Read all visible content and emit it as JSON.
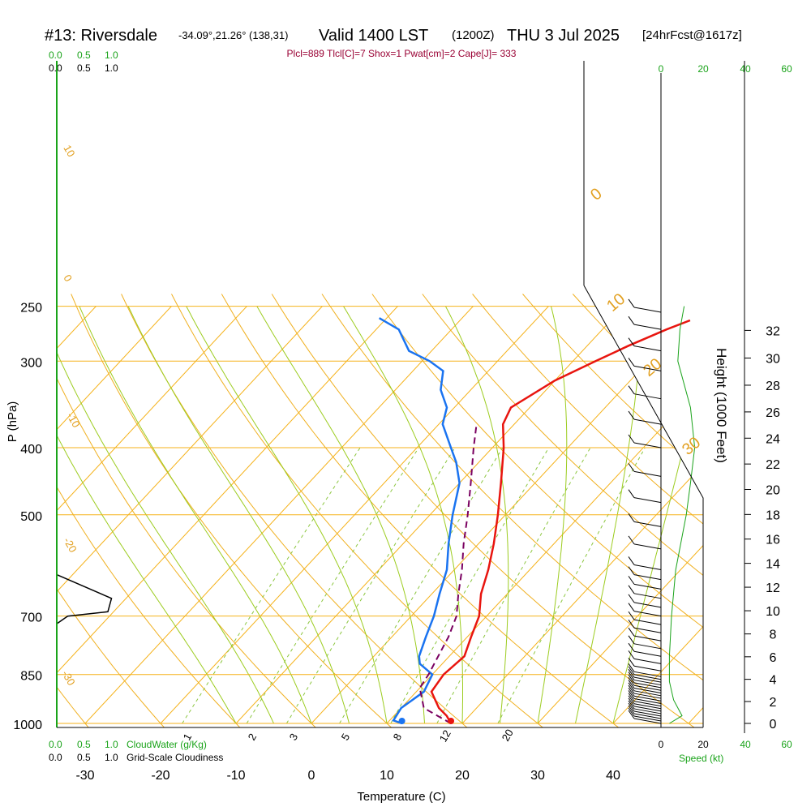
{
  "header": {
    "station": "#13: Riversdale",
    "coords": "-34.09°,21.26° (138,31)",
    "valid": "Valid 1400 LST",
    "utc": "(1200Z)",
    "date": "THU 3 Jul 2025",
    "forecast": "[24hrFcst@1617z]"
  },
  "indices": "Plcl=889 Tlcl[C]=7 Shox=1 Pwat[cm]=2 Cape[J]= 333",
  "left_scales": {
    "top_cloudwater": [
      "0.0",
      "0.5",
      "1.0"
    ],
    "top_cloudiness": [
      "0.0",
      "0.5",
      "1.0"
    ],
    "bottom_cloudwater": [
      "0.0",
      "0.5",
      "1.0"
    ],
    "bottom_cloudwater_label": "CloudWater (g/Kg)",
    "bottom_cloudiness": [
      "0.0",
      "0.5",
      "1.0"
    ],
    "bottom_cloudiness_label": "Grid-Scale Cloudiness"
  },
  "speed_scale": {
    "top_labels": [
      "0",
      "20",
      "40",
      "60"
    ],
    "bottom_labels": [
      "0",
      "20",
      "40",
      "60"
    ],
    "label": "Speed (kt)"
  },
  "chart_data": {
    "type": "line",
    "subtype": "skew-T log-P sounding",
    "xlabel": "Temperature (C)",
    "ylabel": "P (hPa)",
    "y2label": "Height (1000 Feet)",
    "x_ticks": [
      -30,
      -20,
      -10,
      0,
      10,
      20,
      30,
      40
    ],
    "pressure_ticks": [
      250,
      300,
      400,
      500,
      700,
      850,
      1000
    ],
    "height_ticks": [
      0,
      2,
      4,
      6,
      8,
      10,
      12,
      14,
      16,
      18,
      20,
      22,
      24,
      26,
      28,
      30,
      32
    ],
    "dry_adiabat_labels": [
      "10",
      "0",
      "-10",
      "-20",
      "-30"
    ],
    "moist_adiabat_labels": [
      "0",
      "10",
      "20",
      "30"
    ],
    "mixing_ratio_labels": [
      "1",
      "2",
      "3",
      "5",
      "8",
      "12",
      "20"
    ],
    "series": [
      {
        "name": "temperature",
        "color": "#e8150f",
        "points": [
          [
            18.5,
            1000
          ],
          [
            17,
            975
          ],
          [
            15,
            950
          ],
          [
            12,
            900
          ],
          [
            11.5,
            850
          ],
          [
            12,
            800
          ],
          [
            10.5,
            750
          ],
          [
            9,
            700
          ],
          [
            6.5,
            650
          ],
          [
            4.5,
            600
          ],
          [
            2,
            550
          ],
          [
            -1,
            500
          ],
          [
            -4.5,
            450
          ],
          [
            -8.5,
            400
          ],
          [
            -11.5,
            370
          ],
          [
            -12.5,
            350
          ],
          [
            -10,
            320
          ],
          [
            -7,
            300
          ],
          [
            -4.5,
            285
          ],
          [
            -1.5,
            270
          ],
          [
            0.5,
            262
          ]
        ]
      },
      {
        "name": "dewpoint",
        "color": "#1a73f0",
        "points": [
          [
            12,
            1000
          ],
          [
            10.5,
            990
          ],
          [
            10,
            950
          ],
          [
            11,
            900
          ],
          [
            10,
            850
          ],
          [
            7,
            820
          ],
          [
            6,
            800
          ],
          [
            4.5,
            750
          ],
          [
            3,
            700
          ],
          [
            1,
            650
          ],
          [
            -1,
            600
          ],
          [
            -4,
            550
          ],
          [
            -7,
            500
          ],
          [
            -10,
            450
          ],
          [
            -13,
            420
          ],
          [
            -15.5,
            400
          ],
          [
            -19.5,
            370
          ],
          [
            -21,
            350
          ],
          [
            -24,
            330
          ],
          [
            -26,
            310
          ],
          [
            -29,
            300
          ],
          [
            -33,
            290
          ],
          [
            -37,
            270
          ],
          [
            -41,
            260
          ]
        ]
      },
      {
        "name": "parcel",
        "color": "#7a0060",
        "dashed": true,
        "points": [
          [
            18.5,
            1000
          ],
          [
            13,
            950
          ],
          [
            10,
            889
          ],
          [
            9.5,
            850
          ],
          [
            7.5,
            750
          ],
          [
            6,
            700
          ],
          [
            3.5,
            650
          ],
          [
            1,
            600
          ],
          [
            -2,
            550
          ],
          [
            -5,
            500
          ],
          [
            -8.5,
            450
          ],
          [
            -12.5,
            400
          ],
          [
            -15,
            370
          ]
        ]
      }
    ],
    "cloudiness_profile": {
      "name": "grid-scale cloudiness",
      "color": "#000000",
      "points": [
        [
          0,
          610
        ],
        [
          0.75,
          660
        ],
        [
          0.7,
          690
        ],
        [
          0.15,
          700
        ],
        [
          0,
          718
        ]
      ]
    },
    "wind_speed_profile": {
      "name": "wind speed",
      "color": "#1aa31a",
      "points": [
        [
          4,
          1000
        ],
        [
          10,
          975
        ],
        [
          6,
          925
        ],
        [
          4,
          870
        ],
        [
          4,
          800
        ],
        [
          5,
          700
        ],
        [
          7,
          600
        ],
        [
          12,
          500
        ],
        [
          14,
          450
        ],
        [
          16,
          400
        ],
        [
          14,
          350
        ],
        [
          8,
          300
        ],
        [
          9,
          270
        ],
        [
          11,
          250
        ]
      ]
    }
  }
}
